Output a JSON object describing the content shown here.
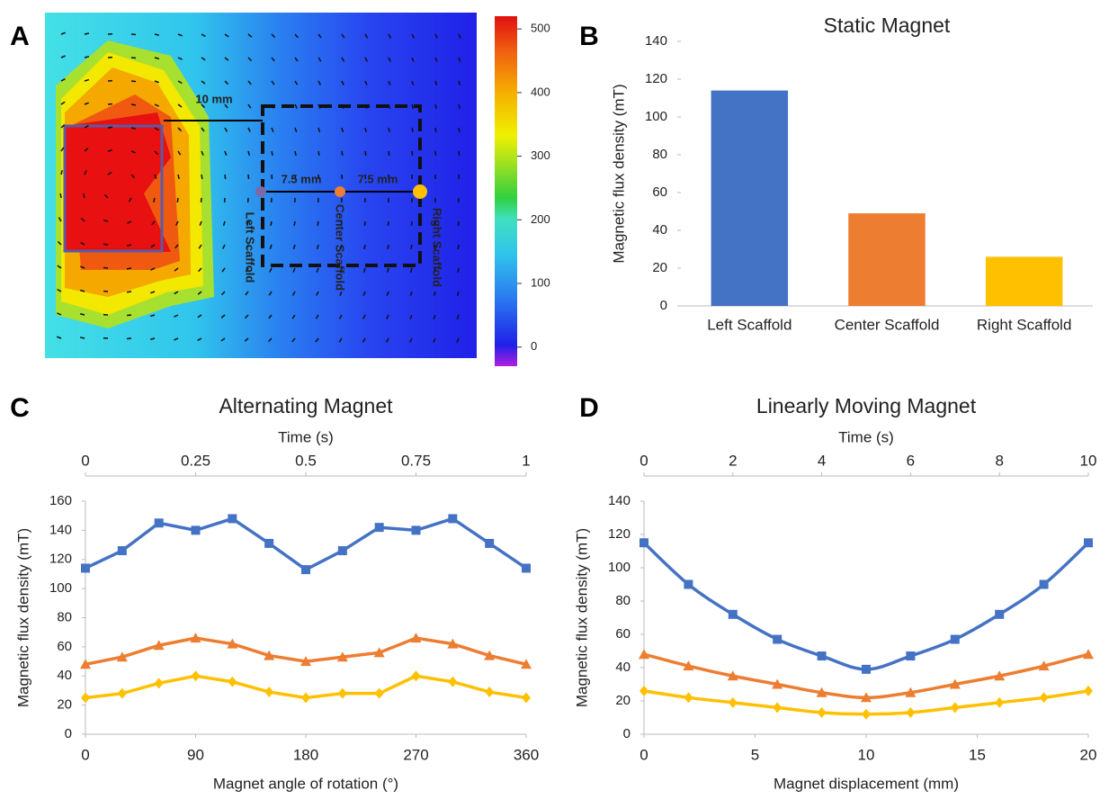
{
  "chart_data": [
    {
      "type": "heatmap",
      "label": "A",
      "annotations": [
        "10 mm",
        "7.5 mm",
        "7.5 mm",
        "Left Scaffold",
        "Center Scaffold",
        "Right Scaffold"
      ],
      "zlim": [
        -30,
        520
      ],
      "zticks": [
        0,
        100,
        200,
        300,
        400,
        500
      ]
    },
    {
      "type": "bar",
      "label": "B",
      "title": "Static Magnet",
      "ylabel": "Magnetic flux density (mT)",
      "categories": [
        "Left Scaffold",
        "Center Scaffold",
        "Right Scaffold"
      ],
      "values": [
        114,
        49,
        26
      ],
      "colors": [
        "#4472c4",
        "#ed7d31",
        "#ffc000"
      ],
      "ylim": [
        0,
        140
      ],
      "yticks": [
        0,
        20,
        40,
        60,
        80,
        100,
        120,
        140
      ]
    },
    {
      "type": "line",
      "label": "C",
      "title": "Alternating Magnet",
      "xlabel": "Magnet angle of rotation (°)",
      "ylabel": "Magnetic flux density (mT)",
      "top_xlabel": "Time (s)",
      "top_xlim": [
        0,
        1
      ],
      "top_xticks": [
        0,
        0.25,
        0.5,
        0.75,
        1
      ],
      "x": [
        0,
        30,
        60,
        90,
        120,
        150,
        180,
        210,
        240,
        270,
        300,
        330,
        360
      ],
      "series": [
        {
          "color": "#4472c4",
          "marker": "square",
          "values": [
            114,
            126,
            145,
            140,
            148,
            131,
            113,
            126,
            142,
            140,
            148,
            131,
            114
          ]
        },
        {
          "color": "#ed7d31",
          "marker": "triangle",
          "values": [
            48,
            53,
            61,
            66,
            62,
            54,
            50,
            53,
            56,
            66,
            62,
            54,
            48
          ]
        },
        {
          "color": "#ffc000",
          "marker": "diamond",
          "values": [
            25,
            28,
            35,
            40,
            36,
            29,
            25,
            28,
            28,
            40,
            36,
            29,
            25
          ]
        }
      ],
      "xlim": [
        0,
        360
      ],
      "xticks": [
        0,
        90,
        180,
        270,
        360
      ],
      "ylim": [
        0,
        160
      ],
      "yticks": [
        0,
        20,
        40,
        60,
        80,
        100,
        120,
        140,
        160
      ],
      "smooth": false
    },
    {
      "type": "line",
      "label": "D",
      "title": "Linearly Moving Magnet",
      "xlabel": "Magnet displacement (mm)",
      "ylabel": "Magnetic flux density (mT)",
      "top_xlabel": "Time (s)",
      "top_xlim": [
        0,
        10
      ],
      "top_xticks": [
        0,
        2,
        4,
        6,
        8,
        10
      ],
      "x": [
        0,
        2,
        4,
        6,
        8,
        10,
        12,
        14,
        16,
        18,
        20
      ],
      "series": [
        {
          "color": "#4472c4",
          "marker": "square",
          "values": [
            115,
            90,
            72,
            57,
            47,
            39,
            47,
            57,
            72,
            90,
            115
          ]
        },
        {
          "color": "#ed7d31",
          "marker": "triangle",
          "values": [
            48,
            41,
            35,
            30,
            25,
            22,
            25,
            30,
            35,
            41,
            48
          ]
        },
        {
          "color": "#ffc000",
          "marker": "diamond",
          "values": [
            26,
            22,
            19,
            16,
            13,
            12,
            13,
            16,
            19,
            22,
            26
          ]
        }
      ],
      "xlim": [
        0,
        20
      ],
      "xticks": [
        0,
        5,
        10,
        15,
        20
      ],
      "ylim": [
        0,
        140
      ],
      "yticks": [
        0,
        20,
        40,
        60,
        80,
        100,
        120,
        140
      ],
      "smooth": true
    }
  ]
}
